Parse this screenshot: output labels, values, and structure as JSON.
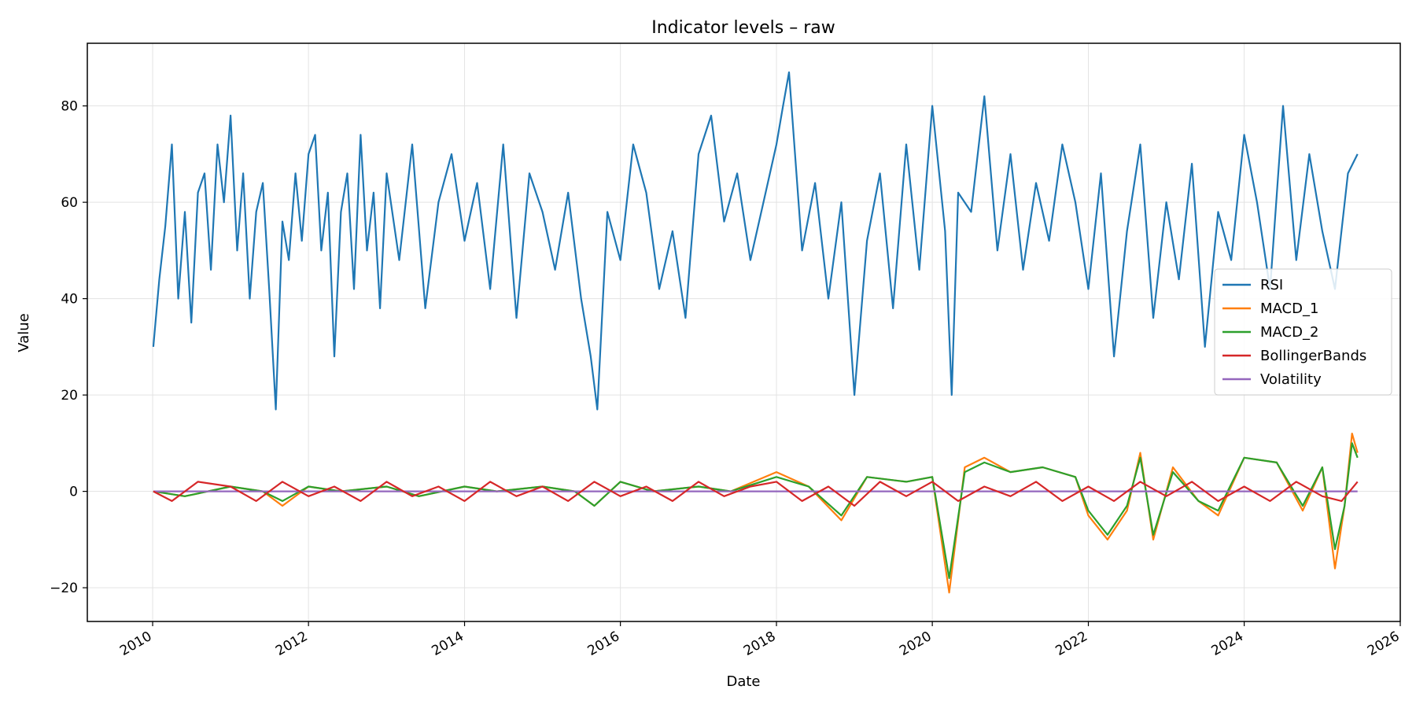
{
  "chart_data": {
    "type": "line",
    "title": "Indicator levels – raw",
    "xlabel": "Date",
    "ylabel": "Value",
    "xlim": [
      "2009-03-01",
      "2026-01-01"
    ],
    "ylim": [
      -27,
      93
    ],
    "x_ticks": [
      "2010",
      "2012",
      "2014",
      "2016",
      "2018",
      "2020",
      "2022",
      "2024",
      "2026"
    ],
    "y_ticks": [
      -20,
      0,
      20,
      40,
      60,
      80
    ],
    "grid": true,
    "legend_position": "center-right",
    "series": [
      {
        "name": "RSI",
        "color": "#1f77b4",
        "x": [
          "2010-01-04",
          "2010-02-01",
          "2010-03-01",
          "2010-04-01",
          "2010-05-01",
          "2010-06-01",
          "2010-07-01",
          "2010-08-01",
          "2010-09-01",
          "2010-10-01",
          "2010-11-01",
          "2010-12-01",
          "2011-01-01",
          "2011-02-01",
          "2011-03-01",
          "2011-04-01",
          "2011-05-01",
          "2011-06-01",
          "2011-07-01",
          "2011-08-01",
          "2011-09-01",
          "2011-10-01",
          "2011-11-01",
          "2011-12-01",
          "2012-01-01",
          "2012-02-01",
          "2012-03-01",
          "2012-04-01",
          "2012-05-01",
          "2012-06-01",
          "2012-07-01",
          "2012-08-01",
          "2012-09-01",
          "2012-10-01",
          "2012-11-01",
          "2012-12-01",
          "2013-01-01",
          "2013-03-01",
          "2013-05-01",
          "2013-07-01",
          "2013-09-01",
          "2013-11-01",
          "2014-01-01",
          "2014-03-01",
          "2014-05-01",
          "2014-07-01",
          "2014-09-01",
          "2014-11-01",
          "2015-01-01",
          "2015-03-01",
          "2015-05-01",
          "2015-07-01",
          "2015-08-15",
          "2015-09-15",
          "2015-11-01",
          "2016-01-01",
          "2016-03-01",
          "2016-05-01",
          "2016-07-01",
          "2016-09-01",
          "2016-11-01",
          "2017-01-01",
          "2017-03-01",
          "2017-05-01",
          "2017-07-01",
          "2017-09-01",
          "2017-11-01",
          "2018-01-01",
          "2018-02-01",
          "2018-03-01",
          "2018-05-01",
          "2018-07-01",
          "2018-09-01",
          "2018-11-01",
          "2019-01-01",
          "2019-03-01",
          "2019-05-01",
          "2019-07-01",
          "2019-09-01",
          "2019-11-01",
          "2020-01-01",
          "2020-03-01",
          "2020-04-01",
          "2020-05-01",
          "2020-07-01",
          "2020-09-01",
          "2020-11-01",
          "2021-01-01",
          "2021-03-01",
          "2021-05-01",
          "2021-07-01",
          "2021-09-01",
          "2021-11-01",
          "2022-01-01",
          "2022-03-01",
          "2022-05-01",
          "2022-07-01",
          "2022-09-01",
          "2022-11-01",
          "2023-01-01",
          "2023-03-01",
          "2023-05-01",
          "2023-07-01",
          "2023-09-01",
          "2023-11-01",
          "2024-01-01",
          "2024-03-01",
          "2024-05-01",
          "2024-07-01",
          "2024-09-01",
          "2024-11-01",
          "2025-01-01",
          "2025-03-01",
          "2025-05-01",
          "2025-06-15"
        ],
        "values": [
          30,
          44,
          55,
          72,
          40,
          58,
          35,
          62,
          66,
          46,
          72,
          60,
          78,
          50,
          66,
          40,
          58,
          64,
          42,
          17,
          56,
          48,
          66,
          52,
          70,
          74,
          50,
          62,
          28,
          58,
          66,
          42,
          74,
          50,
          62,
          38,
          66,
          48,
          72,
          38,
          60,
          70,
          52,
          64,
          42,
          72,
          36,
          66,
          58,
          46,
          62,
          40,
          28,
          17,
          58,
          48,
          72,
          62,
          42,
          54,
          36,
          70,
          78,
          56,
          66,
          48,
          60,
          72,
          80,
          87,
          50,
          64,
          40,
          60,
          20,
          52,
          66,
          38,
          72,
          46,
          80,
          54,
          20,
          62,
          58,
          82,
          50,
          70,
          46,
          64,
          52,
          72,
          60,
          42,
          66,
          28,
          54,
          72,
          36,
          60,
          44,
          68,
          30,
          58,
          48,
          74,
          60,
          42,
          80,
          48,
          70,
          54,
          42,
          66,
          70
        ]
      },
      {
        "name": "MACD_1",
        "color": "#ff7f0e",
        "x": [
          "2010-01-04",
          "2010-06-01",
          "2011-01-01",
          "2011-06-01",
          "2011-09-01",
          "2012-01-01",
          "2012-06-01",
          "2013-01-01",
          "2013-06-01",
          "2014-01-01",
          "2014-06-01",
          "2015-01-01",
          "2015-06-01",
          "2015-09-01",
          "2016-01-01",
          "2016-06-01",
          "2017-01-01",
          "2017-06-01",
          "2018-01-01",
          "2018-06-01",
          "2018-11-01",
          "2019-03-01",
          "2019-09-01",
          "2020-01-01",
          "2020-03-20",
          "2020-06-01",
          "2020-09-01",
          "2021-01-01",
          "2021-06-01",
          "2021-11-01",
          "2022-01-01",
          "2022-04-01",
          "2022-07-01",
          "2022-09-01",
          "2022-11-01",
          "2023-02-01",
          "2023-06-01",
          "2023-09-01",
          "2024-01-01",
          "2024-06-01",
          "2024-10-01",
          "2025-01-01",
          "2025-03-01",
          "2025-04-15",
          "2025-05-20",
          "2025-06-15"
        ],
        "values": [
          0,
          -1,
          1,
          0,
          -3,
          1,
          0,
          1,
          -1,
          1,
          0,
          1,
          0,
          -3,
          2,
          0,
          1,
          0,
          4,
          1,
          -6,
          3,
          2,
          3,
          -21,
          5,
          7,
          4,
          5,
          3,
          -5,
          -10,
          -4,
          8,
          -10,
          5,
          -2,
          -5,
          7,
          6,
          -4,
          5,
          -16,
          -3,
          12,
          8
        ]
      },
      {
        "name": "MACD_2",
        "color": "#2ca02c",
        "x": [
          "2010-01-04",
          "2010-06-01",
          "2011-01-01",
          "2011-06-01",
          "2011-09-01",
          "2012-01-01",
          "2012-06-01",
          "2013-01-01",
          "2013-06-01",
          "2014-01-01",
          "2014-06-01",
          "2015-01-01",
          "2015-06-01",
          "2015-09-01",
          "2016-01-01",
          "2016-06-01",
          "2017-01-01",
          "2017-06-01",
          "2018-01-01",
          "2018-06-01",
          "2018-11-01",
          "2019-03-01",
          "2019-09-01",
          "2020-01-01",
          "2020-03-20",
          "2020-06-01",
          "2020-09-01",
          "2021-01-01",
          "2021-06-01",
          "2021-11-01",
          "2022-01-01",
          "2022-04-01",
          "2022-07-01",
          "2022-09-01",
          "2022-11-01",
          "2023-02-01",
          "2023-06-01",
          "2023-09-01",
          "2024-01-01",
          "2024-06-01",
          "2024-10-01",
          "2025-01-01",
          "2025-03-01",
          "2025-04-15",
          "2025-05-20",
          "2025-06-15"
        ],
        "values": [
          0,
          -1,
          1,
          0,
          -2,
          1,
          0,
          1,
          -1,
          1,
          0,
          1,
          0,
          -3,
          2,
          0,
          1,
          0,
          3,
          1,
          -5,
          3,
          2,
          3,
          -18,
          4,
          6,
          4,
          5,
          3,
          -4,
          -9,
          -3,
          7,
          -9,
          4,
          -2,
          -4,
          7,
          6,
          -3,
          5,
          -12,
          -3,
          10,
          7
        ]
      },
      {
        "name": "BollingerBands",
        "color": "#d62728",
        "x": [
          "2010-01-04",
          "2010-04-01",
          "2010-08-01",
          "2011-01-01",
          "2011-05-01",
          "2011-09-01",
          "2012-01-01",
          "2012-05-01",
          "2012-09-01",
          "2013-01-01",
          "2013-05-01",
          "2013-09-01",
          "2014-01-01",
          "2014-05-01",
          "2014-09-01",
          "2015-01-01",
          "2015-05-01",
          "2015-09-01",
          "2016-01-01",
          "2016-05-01",
          "2016-09-01",
          "2017-01-01",
          "2017-05-01",
          "2017-09-01",
          "2018-01-01",
          "2018-05-01",
          "2018-09-01",
          "2019-01-01",
          "2019-05-01",
          "2019-09-01",
          "2020-01-01",
          "2020-05-01",
          "2020-09-01",
          "2021-01-01",
          "2021-05-01",
          "2021-09-01",
          "2022-01-01",
          "2022-05-01",
          "2022-09-01",
          "2023-01-01",
          "2023-05-01",
          "2023-09-01",
          "2024-01-01",
          "2024-05-01",
          "2024-09-01",
          "2025-01-01",
          "2025-04-01",
          "2025-06-15"
        ],
        "values": [
          0,
          -2,
          2,
          1,
          -2,
          2,
          -1,
          1,
          -2,
          2,
          -1,
          1,
          -2,
          2,
          -1,
          1,
          -2,
          2,
          -1,
          1,
          -2,
          2,
          -1,
          1,
          2,
          -2,
          1,
          -3,
          2,
          -1,
          2,
          -2,
          1,
          -1,
          2,
          -2,
          1,
          -2,
          2,
          -1,
          2,
          -2,
          1,
          -2,
          2,
          -1,
          -2,
          2
        ]
      },
      {
        "name": "Volatility",
        "color": "#9467bd",
        "x": [
          "2010-01-04",
          "2025-06-15"
        ],
        "values": [
          0,
          0
        ]
      }
    ]
  }
}
